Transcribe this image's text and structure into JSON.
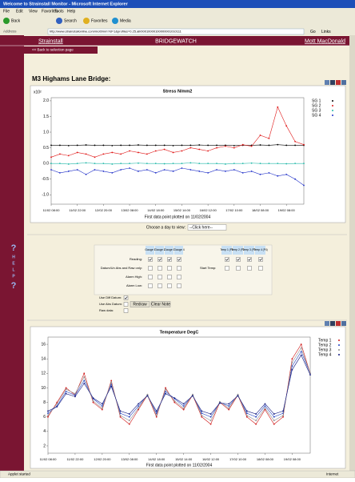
{
  "window": {
    "title": "Welcome to Strainstall Monitor - Microsoft Internet Explorer",
    "menu": [
      "File",
      "Edit",
      "View",
      "Favorites",
      "Tools",
      "Help"
    ],
    "toolbar": [
      "Back",
      "Search",
      "Favorites",
      "Media"
    ],
    "address_label": "Address",
    "url": "http://www.strainstallonline.com/mott/mm?id=1&profiles=0.25.all/00010000100000001010111",
    "go": "Go",
    "links": "Links",
    "status": "Applet started",
    "zone": "Internet"
  },
  "nav": {
    "left": "Strainstall",
    "center": "BRIDGEWATCH",
    "right": "Mott MacDonald",
    "back": "<< Back to selection page",
    "help": [
      "?",
      "H",
      "E",
      "L",
      "P",
      "?"
    ]
  },
  "heading": "M3 Highams Lane Bridge:",
  "day_prompt": "Choose a day to view:",
  "day_select": "--Click here--",
  "form": {
    "gauges": [
      "Gauge 1",
      "Gauge 2",
      "Gauge 3",
      "Gauge 4"
    ],
    "temps": [
      "Temp 1 (P1)",
      "Temp 2 (P2)",
      "Temp 3 (P3)",
      "Temp 4 (P4)"
    ],
    "start_temp": "Start Temp:",
    "rows": [
      {
        "label": "Reading:",
        "checked": true
      },
      {
        "label": "Datum/Un Abs and Raw only:",
        "checked": false
      },
      {
        "label": "Alarm High:",
        "checked": false
      },
      {
        "label": "Alarm Low:",
        "checked": false
      }
    ],
    "options": [
      {
        "label": "Use Diff Datum:",
        "checked": true
      },
      {
        "label": "Use Abs Datum:",
        "checked": false
      },
      {
        "label": "Raw data:",
        "checked": false
      }
    ],
    "buttons": [
      "Redraw",
      "Clear Note"
    ]
  },
  "chart_data": [
    {
      "type": "line",
      "title": "Stress N/mm2",
      "y_unit": "x10²",
      "subtitle": "First data point plotted on 11/02/2004",
      "xlim": [
        0,
        29
      ],
      "xticks": [
        {
          "value": 0,
          "label": "11/02 08:00"
        },
        {
          "value": 3,
          "label": "11/02 22:00"
        },
        {
          "value": 6,
          "label": "12/02 20:00"
        },
        {
          "value": 9,
          "label": "13/02 08:00"
        },
        {
          "value": 12,
          "label": "14/02 18:00"
        },
        {
          "value": 15,
          "label": "15/02 14:00"
        },
        {
          "value": 18,
          "label": "16/02 12:00"
        },
        {
          "value": 21,
          "label": "17/02 10:00"
        },
        {
          "value": 24,
          "label": "18/02 08:00"
        },
        {
          "value": 27,
          "label": "19/02 08:00"
        }
      ],
      "ylim": [
        -1.3,
        2.1
      ],
      "yticks": [
        {
          "value": 2,
          "label": "2.0"
        },
        1.5,
        {
          "value": 1,
          "label": "1.0"
        },
        0.5,
        {
          "value": 0,
          "label": "0.0"
        },
        -0.5,
        {
          "value": -1,
          "label": "-1.0"
        }
      ],
      "series": [
        {
          "name": "SG 1",
          "color": "#000000",
          "values": [
            0.58,
            0.58,
            0.57,
            0.58,
            0.59,
            0.58,
            0.58,
            0.57,
            0.58,
            0.58,
            0.59,
            0.58,
            0.58,
            0.58,
            0.57,
            0.58,
            0.58,
            0.59,
            0.58,
            0.58,
            0.58,
            0.57,
            0.58,
            0.58,
            0.59,
            0.58,
            0.6,
            0.58,
            0.58,
            0.58
          ]
        },
        {
          "name": "SG 2",
          "color": "#e01818",
          "values": [
            0.2,
            0.3,
            0.25,
            0.35,
            0.3,
            0.2,
            0.3,
            0.35,
            0.3,
            0.4,
            0.35,
            0.3,
            0.4,
            0.45,
            0.35,
            0.4,
            0.5,
            0.45,
            0.4,
            0.5,
            0.55,
            0.5,
            0.6,
            0.55,
            0.9,
            0.8,
            1.8,
            1.2,
            0.7,
            0.6
          ]
        },
        {
          "name": "SG 3",
          "color": "#20b8a8",
          "values": [
            0,
            0,
            -0.02,
            0,
            0.02,
            0,
            0,
            -0.02,
            0,
            0,
            0.01,
            0,
            0,
            -0.01,
            0,
            0,
            0.02,
            0,
            0,
            0,
            -0.02,
            0,
            0,
            0.01,
            0,
            0,
            0,
            -0.01,
            0,
            0
          ]
        },
        {
          "name": "SG 4",
          "color": "#2030c8",
          "values": [
            -0.2,
            -0.3,
            -0.25,
            -0.2,
            -0.35,
            -0.2,
            -0.25,
            -0.3,
            -0.2,
            -0.15,
            -0.25,
            -0.2,
            -0.3,
            -0.2,
            -0.25,
            -0.15,
            -0.2,
            -0.25,
            -0.3,
            -0.2,
            -0.25,
            -0.2,
            -0.3,
            -0.25,
            -0.35,
            -0.3,
            -0.4,
            -0.35,
            -0.5,
            -0.7
          ]
        }
      ]
    },
    {
      "type": "line",
      "title": "Temperature DegC",
      "subtitle": "First data point plotted on 11/02/2004",
      "xlim": [
        0,
        29
      ],
      "xticks": [
        {
          "value": 0,
          "label": "11/02 08:00"
        },
        {
          "value": 3,
          "label": "11/02 22:00"
        },
        {
          "value": 6,
          "label": "12/02 20:00"
        },
        {
          "value": 9,
          "label": "13/02 08:00"
        },
        {
          "value": 12,
          "label": "14/02 18:00"
        },
        {
          "value": 15,
          "label": "15/02 14:00"
        },
        {
          "value": 18,
          "label": "16/02 12:00"
        },
        {
          "value": 21,
          "label": "17/02 10:00"
        },
        {
          "value": 24,
          "label": "18/02 08:00"
        },
        {
          "value": 27,
          "label": "19/02 08:00"
        }
      ],
      "ylim": [
        1,
        17
      ],
      "yticks": [
        16,
        14,
        12,
        10,
        8,
        6,
        4,
        2
      ],
      "series": [
        {
          "name": "Temp 1",
          "color": "#d01818",
          "values": [
            6,
            8,
            10,
            9,
            12,
            8,
            7,
            11,
            6,
            5,
            7,
            9,
            6,
            10,
            8,
            7,
            9,
            6,
            5,
            8,
            7,
            9,
            6,
            5,
            7,
            5,
            6,
            14,
            16,
            12
          ]
        },
        {
          "name": "Temp 2",
          "color": "#2040c0",
          "values": [
            6.5,
            7.5,
            9.5,
            9,
            11,
            8.5,
            7.5,
            10.5,
            6.5,
            6,
            7.5,
            9,
            6.5,
            9.5,
            8.5,
            7.5,
            9,
            6.5,
            6,
            8,
            7.5,
            9,
            6.5,
            6,
            7.5,
            6,
            6.5,
            13,
            15,
            12
          ]
        },
        {
          "name": "Temp 3",
          "color": "#909090",
          "values": [
            6.2,
            7.8,
            9.8,
            9.2,
            11.5,
            8.2,
            7.2,
            10.8,
            6.2,
            5.5,
            7.2,
            9.1,
            6.2,
            9.8,
            8.2,
            7.2,
            9.1,
            6.2,
            5.5,
            8.1,
            7.2,
            9.1,
            6.2,
            5.5,
            7.2,
            5.5,
            6.2,
            13.5,
            15.5,
            12
          ]
        },
        {
          "name": "Temp 4",
          "color": "#101880",
          "values": [
            6.8,
            7.4,
            9.2,
            8.8,
            10.6,
            8.6,
            7.8,
            10.2,
            6.8,
            6.4,
            7.8,
            8.9,
            6.8,
            9.2,
            8.6,
            7.8,
            8.9,
            6.8,
            6.4,
            7.9,
            7.8,
            8.9,
            6.8,
            6.4,
            7.8,
            6.4,
            6.8,
            12.5,
            14.5,
            11.8
          ]
        }
      ]
    }
  ]
}
